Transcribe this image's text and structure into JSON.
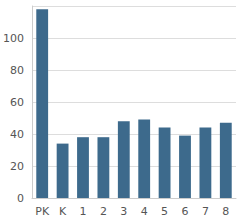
{
  "chart_data": {
    "type": "bar",
    "categories": [
      "PK",
      "K",
      "1",
      "2",
      "3",
      "4",
      "5",
      "6",
      "7",
      "8"
    ],
    "values": [
      118,
      34,
      38,
      38,
      48,
      49,
      44,
      39,
      44,
      47
    ],
    "color": "#3d6a8c",
    "ylim": [
      0,
      120
    ],
    "yticks": [
      0,
      20,
      40,
      60,
      80,
      100
    ],
    "grid": true
  }
}
